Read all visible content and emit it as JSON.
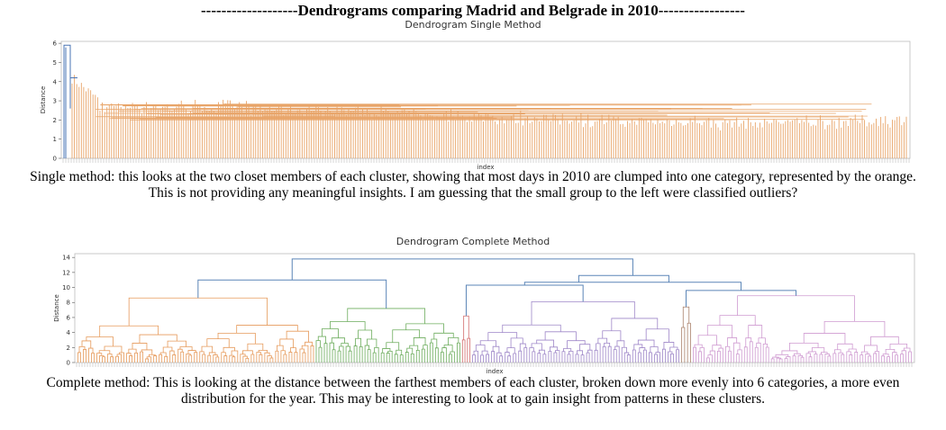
{
  "heading": "-------------------Dendrograms comparing Madrid and Belgrade in 2010-----------------",
  "chart_data": [
    {
      "type": "dendrogram",
      "title": "Dendrogram Single Method",
      "xlabel": "index",
      "ylabel": "Distance",
      "ylim": [
        0,
        6.1
      ],
      "yticks": [
        0,
        1,
        2,
        3,
        4,
        5,
        6
      ],
      "grid": false,
      "clusters": [
        {
          "name": "blue outliers",
          "color": "#4a74b4",
          "leaves_fraction": 0.01,
          "height": 5.9
        },
        {
          "name": "orange",
          "color": "#e8a468",
          "leaves_fraction": 0.99,
          "height": 4.2
        }
      ],
      "root_height": 5.9,
      "typical_merge_range": [
        1.0,
        3.0
      ]
    },
    {
      "type": "dendrogram",
      "title": "Dendrogram Complete Method",
      "xlabel": "index",
      "ylabel": "Distance",
      "ylim": [
        0,
        14.5
      ],
      "yticks": [
        0,
        2,
        4,
        6,
        8,
        10,
        12,
        14
      ],
      "grid": false,
      "root_height": 13.8,
      "link_color": "#5b85b7",
      "clusters": [
        {
          "name": "orange",
          "color": "#e69a5b",
          "leaves_fraction": 0.285,
          "height": 8.6
        },
        {
          "name": "green",
          "color": "#6cac5c",
          "leaves_fraction": 0.175,
          "height": 7.2
        },
        {
          "name": "red",
          "color": "#d26a6a",
          "leaves_fraction": 0.012,
          "height": 6.2
        },
        {
          "name": "purple",
          "color": "#9e86c8",
          "leaves_fraction": 0.25,
          "height": 8.1
        },
        {
          "name": "brown",
          "color": "#a9806a",
          "leaves_fraction": 0.014,
          "height": 7.4
        },
        {
          "name": "pink",
          "color": "#cf9bd1",
          "leaves_fraction": 0.264,
          "height": 8.9
        }
      ],
      "upper_merges": [
        {
          "joins": [
            "orange",
            "green"
          ],
          "height": 11.0
        },
        {
          "joins": [
            "red",
            "purple"
          ],
          "height": 10.3
        },
        {
          "joins": [
            "brown",
            "pink"
          ],
          "height": 9.6
        },
        {
          "joins": [
            "red+purple",
            "brown+pink"
          ],
          "height": 10.7
        },
        {
          "joins": [
            "green-side",
            "group"
          ],
          "height": 10.2
        },
        {
          "joins": [
            "left",
            "right"
          ],
          "height": 11.6
        },
        {
          "joins": [
            "all"
          ],
          "height": 13.8
        }
      ]
    }
  ],
  "captions": {
    "single": "Single method: this looks at the two closet members of each cluster, showing that most days in 2010 are clumped into one category, represented by the orange.  This is not providing any meaningful insights. I am guessing that the small group to the left were classified outliers?",
    "complete": "Complete method: This is looking at the distance between the farthest members of each cluster,  broken down more evenly into 6 categories, a more even distribution for the year.  This may be interesting to look at to gain insight from patterns in these clusters."
  }
}
